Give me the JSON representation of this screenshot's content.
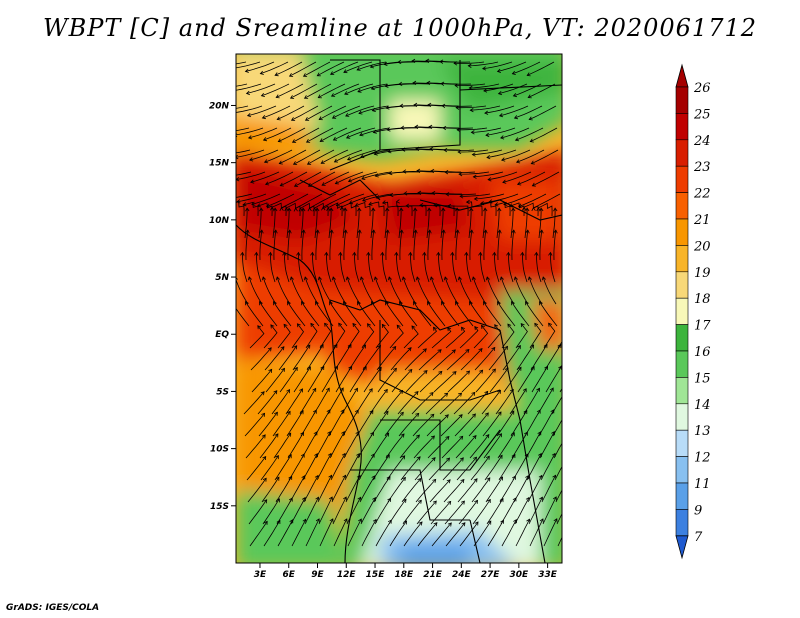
{
  "title": "WBPT [C] and Sreamline at 1000hPa, VT: 2020061712",
  "credit": "GrADS: IGES/COLA",
  "chart_data": {
    "type": "heatmap",
    "variable": "Wet-bulb potential temperature with streamlines",
    "lat_labels": [
      "20N",
      "15N",
      "10N",
      "5N",
      "EQ",
      "5S",
      "10S",
      "15S"
    ],
    "lat_values": [
      20,
      15,
      10,
      5,
      0,
      -5,
      -10,
      -15
    ],
    "lon_labels": [
      "3E",
      "6E",
      "9E",
      "12E",
      "15E",
      "18E",
      "21E",
      "24E",
      "27E",
      "30E",
      "33E"
    ],
    "lon_values": [
      3,
      6,
      9,
      12,
      15,
      18,
      21,
      24,
      27,
      30,
      33
    ],
    "lat_range": [
      -20,
      24.5
    ],
    "lon_range": [
      0.5,
      34.5
    ],
    "colorbar": {
      "levels": [
        "26",
        "25",
        "24",
        "23",
        "22",
        "21",
        "20",
        "19",
        "18",
        "17",
        "16",
        "15",
        "14",
        "13",
        "12",
        "11",
        "9",
        "7"
      ],
      "colors": [
        "#a50000",
        "#c00000",
        "#d81e00",
        "#ee3c00",
        "#f86000",
        "#f89600",
        "#f8b428",
        "#f8d878",
        "#f8f8b8",
        "#3cb43c",
        "#5ac85a",
        "#a0e696",
        "#e0f8e0",
        "#b8dcf8",
        "#88c0f0",
        "#5aa0e8",
        "#3c80e0",
        "#1e5ad0"
      ],
      "orientation": "vertical",
      "position": "right"
    }
  }
}
